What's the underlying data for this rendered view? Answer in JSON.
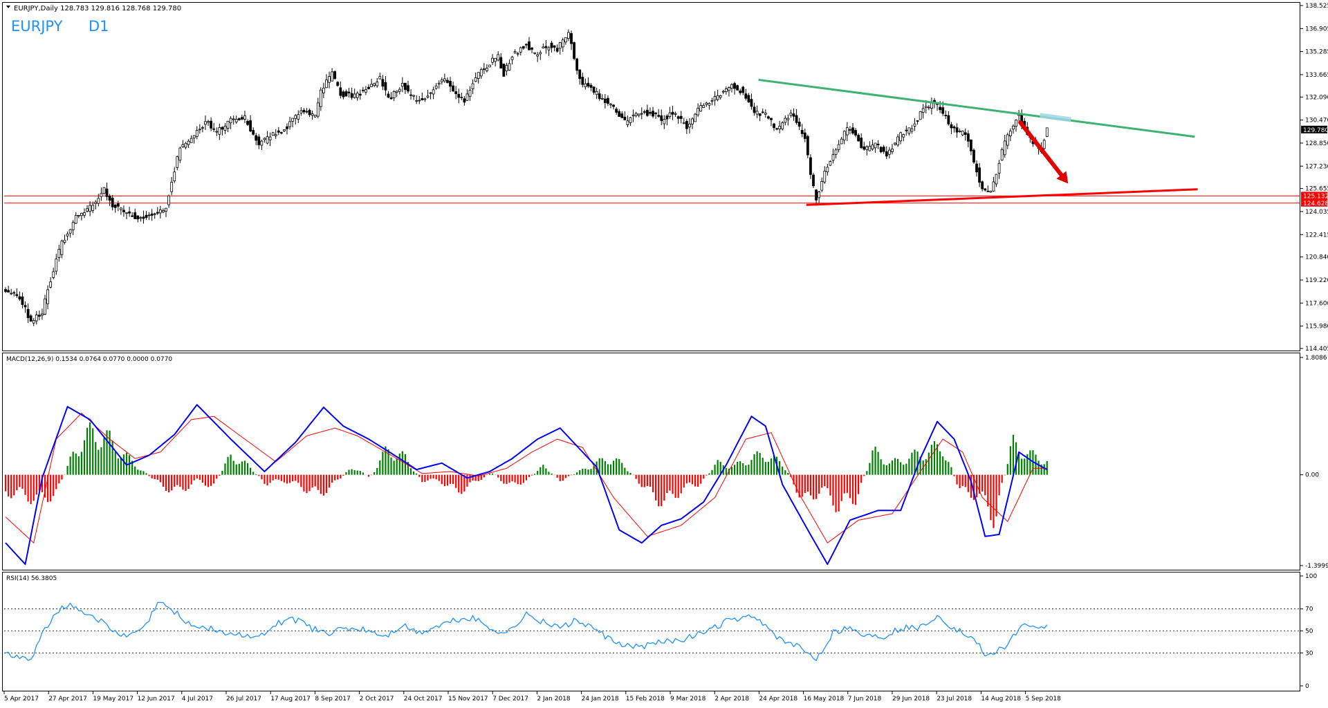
{
  "header": {
    "symbol_info": "EURJPY,Daily  128.783 129.816 128.768 129.780",
    "big_label_symbol": "EURJPY",
    "big_label_tf": "D1"
  },
  "colors": {
    "bull": "#008000",
    "bear": "#ff0000",
    "macd_line": "#0000ff",
    "signal_line": "#ff0000",
    "rsi_line": "#1e90ff",
    "resistance_line": "#3cb371",
    "support_line": "#ff0000",
    "arrow": "#e00000",
    "label_blue": "#1e90ff"
  },
  "chart_data": [
    {
      "type": "candlestick",
      "title": "EURJPY,Daily  128.783 129.816 128.768 129.780",
      "ylim": [
        114.405,
        138.525
      ],
      "y_ticks": [
        "138.525",
        "136.905",
        "135.285",
        "133.665",
        "132.090",
        "130.470",
        "128.850",
        "127.230",
        "125.655",
        "124.035",
        "122.415",
        "120.840",
        "119.220",
        "117.600",
        "115.980",
        "114.405"
      ],
      "price_labels": [
        {
          "value": 129.78,
          "text": "129.780",
          "style": "current"
        },
        {
          "value": 125.132,
          "text": "125.132",
          "style": "red"
        },
        {
          "value": 124.628,
          "text": "124.628",
          "style": "red"
        }
      ],
      "x_labels": [
        "5 Apr 2017",
        "27 Apr 2017",
        "19 May 2017",
        "12 Jun 2017",
        "4 Jul 2017",
        "26 Jul 2017",
        "17 Aug 2017",
        "8 Sep 2017",
        "2 Oct 2017",
        "24 Oct 2017",
        "15 Nov 2017",
        "7 Dec 2017",
        "2 Jan 2018",
        "24 Jan 2018",
        "15 Feb 2018",
        "9 Mar 2018",
        "2 Apr 2018",
        "24 Apr 2018",
        "16 May 2018",
        "7 Jun 2018",
        "29 Jun 2018",
        "23 Jul 2018",
        "14 Aug 2018",
        "5 Sep 2018"
      ],
      "close_path": [
        [
          0,
          118.6
        ],
        [
          5,
          118.0
        ],
        [
          9,
          116.3
        ],
        [
          13,
          117.0
        ],
        [
          17,
          120.0
        ],
        [
          20,
          121.8
        ],
        [
          25,
          123.6
        ],
        [
          30,
          124.3
        ],
        [
          35,
          125.6
        ],
        [
          38,
          124.5
        ],
        [
          42,
          124.0
        ],
        [
          47,
          123.6
        ],
        [
          52,
          123.8
        ],
        [
          57,
          124.4
        ],
        [
          59,
          126.2
        ],
        [
          62,
          128.5
        ],
        [
          67,
          129.3
        ],
        [
          71,
          130.4
        ],
        [
          75,
          129.6
        ],
        [
          80,
          130.4
        ],
        [
          85,
          130.6
        ],
        [
          90,
          128.8
        ],
        [
          95,
          129.4
        ],
        [
          100,
          129.9
        ],
        [
          105,
          131.2
        ],
        [
          110,
          130.7
        ],
        [
          112,
          132.5
        ],
        [
          116,
          133.7
        ],
        [
          119,
          132.3
        ],
        [
          124,
          132.1
        ],
        [
          129,
          132.8
        ],
        [
          133,
          133.4
        ],
        [
          136,
          131.9
        ],
        [
          141,
          132.9
        ],
        [
          146,
          131.8
        ],
        [
          151,
          132.4
        ],
        [
          156,
          133.4
        ],
        [
          160,
          132.4
        ],
        [
          163,
          131.9
        ],
        [
          167,
          133.5
        ],
        [
          172,
          134.5
        ],
        [
          175,
          134.9
        ],
        [
          177,
          133.7
        ],
        [
          180,
          135.0
        ],
        [
          185,
          135.8
        ],
        [
          188,
          135.1
        ],
        [
          193,
          135.7
        ],
        [
          196,
          135.4
        ],
        [
          200,
          136.7
        ],
        [
          202,
          134.7
        ],
        [
          205,
          133.0
        ],
        [
          210,
          132.3
        ],
        [
          215,
          131.6
        ],
        [
          220,
          130.3
        ],
        [
          225,
          131.0
        ],
        [
          230,
          130.9
        ],
        [
          233,
          130.4
        ],
        [
          237,
          131.0
        ],
        [
          242,
          130.0
        ],
        [
          247,
          131.4
        ],
        [
          252,
          132.0
        ],
        [
          257,
          132.9
        ],
        [
          262,
          132.5
        ],
        [
          266,
          131.0
        ],
        [
          270,
          130.8
        ],
        [
          274,
          129.8
        ],
        [
          279,
          131.0
        ],
        [
          284,
          129.3
        ],
        [
          286,
          126.5
        ],
        [
          288,
          124.8
        ],
        [
          291,
          126.8
        ],
        [
          295,
          128.3
        ],
        [
          299,
          130.0
        ],
        [
          302,
          129.4
        ],
        [
          305,
          128.3
        ],
        [
          309,
          128.7
        ],
        [
          313,
          128.0
        ],
        [
          318,
          129.4
        ],
        [
          322,
          130.0
        ],
        [
          326,
          131.2
        ],
        [
          330,
          131.8
        ],
        [
          334,
          130.6
        ],
        [
          337,
          129.8
        ],
        [
          341,
          129.5
        ],
        [
          344,
          127.6
        ],
        [
          347,
          125.6
        ],
        [
          350,
          125.3
        ],
        [
          353,
          127.6
        ],
        [
          356,
          129.4
        ],
        [
          360,
          131.0
        ],
        [
          362,
          129.8
        ],
        [
          365,
          128.9
        ],
        [
          368,
          128.4
        ],
        [
          370,
          129.8
        ]
      ],
      "trendlines": [
        {
          "name": "resistance",
          "from": [
            268,
            133.3
          ],
          "to": [
            423,
            129.3
          ]
        },
        {
          "name": "support",
          "from": [
            285,
            124.5
          ],
          "to": [
            424,
            125.6
          ]
        },
        {
          "name": "retest-zone",
          "from": [
            368,
            130.8
          ],
          "to": [
            379,
            130.5
          ]
        }
      ],
      "arrow": {
        "from": [
          361,
          130.3
        ],
        "to": [
          378,
          126.0
        ]
      },
      "horizontal_levels": [
        125.132,
        124.628
      ]
    },
    {
      "type": "macd",
      "title": "MACD(12,26,9) 0.1534 0.0764 0.0770 0.0000 0.0770",
      "params": [
        12,
        26,
        9
      ],
      "ylim": [
        -1.3999,
        1.8086
      ],
      "y_ticks": [
        "1.8086",
        "0.00",
        "-1.3999"
      ],
      "macd_path": [
        [
          0,
          -1.05
        ],
        [
          7,
          -1.38
        ],
        [
          13,
          -0.05
        ],
        [
          22,
          1.05
        ],
        [
          30,
          0.85
        ],
        [
          43,
          0.15
        ],
        [
          51,
          0.3
        ],
        [
          60,
          0.62
        ],
        [
          68,
          1.08
        ],
        [
          80,
          0.55
        ],
        [
          92,
          0.05
        ],
        [
          103,
          0.5
        ],
        [
          113,
          1.04
        ],
        [
          120,
          0.75
        ],
        [
          129,
          0.55
        ],
        [
          140,
          0.25
        ],
        [
          146,
          0.08
        ],
        [
          155,
          0.18
        ],
        [
          164,
          -0.05
        ],
        [
          172,
          0.05
        ],
        [
          180,
          0.25
        ],
        [
          189,
          0.55
        ],
        [
          197,
          0.72
        ],
        [
          205,
          0.35
        ],
        [
          210,
          0.12
        ],
        [
          218,
          -0.85
        ],
        [
          226,
          -1.05
        ],
        [
          233,
          -0.78
        ],
        [
          240,
          -0.68
        ],
        [
          248,
          -0.42
        ],
        [
          256,
          0.15
        ],
        [
          265,
          0.9
        ],
        [
          270,
          0.75
        ],
        [
          276,
          -0.15
        ],
        [
          285,
          -0.85
        ],
        [
          292,
          -1.38
        ],
        [
          300,
          -0.7
        ],
        [
          310,
          -0.55
        ],
        [
          318,
          -0.55
        ],
        [
          325,
          0.25
        ],
        [
          331,
          0.82
        ],
        [
          337,
          0.55
        ],
        [
          343,
          -0.1
        ],
        [
          348,
          -0.95
        ],
        [
          353,
          -0.92
        ],
        [
          360,
          0.35
        ],
        [
          365,
          0.2
        ],
        [
          370,
          0.08
        ]
      ],
      "signal_path": [
        [
          0,
          -0.65
        ],
        [
          10,
          -1.05
        ],
        [
          18,
          0.55
        ],
        [
          27,
          0.95
        ],
        [
          37,
          0.55
        ],
        [
          46,
          0.25
        ],
        [
          55,
          0.35
        ],
        [
          66,
          0.85
        ],
        [
          74,
          0.9
        ],
        [
          85,
          0.55
        ],
        [
          96,
          0.2
        ],
        [
          107,
          0.6
        ],
        [
          117,
          0.72
        ],
        [
          125,
          0.6
        ],
        [
          135,
          0.35
        ],
        [
          148,
          0.02
        ],
        [
          158,
          0.05
        ],
        [
          168,
          -0.02
        ],
        [
          178,
          0.1
        ],
        [
          187,
          0.35
        ],
        [
          196,
          0.55
        ],
        [
          205,
          0.42
        ],
        [
          216,
          -0.35
        ],
        [
          228,
          -0.95
        ],
        [
          240,
          -0.78
        ],
        [
          252,
          -0.35
        ],
        [
          263,
          0.55
        ],
        [
          272,
          0.65
        ],
        [
          282,
          -0.3
        ],
        [
          292,
          -1.05
        ],
        [
          303,
          -0.7
        ],
        [
          315,
          -0.6
        ],
        [
          325,
          0.05
        ],
        [
          333,
          0.55
        ],
        [
          340,
          0.35
        ],
        [
          347,
          -0.35
        ],
        [
          356,
          -0.72
        ],
        [
          365,
          0.1
        ],
        [
          370,
          0.1
        ]
      ],
      "histogram": {
        "values": [
          -0.3,
          -0.35,
          -0.45,
          -0.3,
          0.45,
          0.75,
          0.6,
          0.3,
          0.05,
          -0.2,
          -0.3,
          -0.1,
          -0.2,
          0.35,
          0.15,
          -0.15,
          -0.1,
          -0.2,
          -0.35,
          -0.15,
          0.15,
          -0.05,
          0.45,
          0.3,
          -0.1,
          -0.1,
          -0.3,
          -0.15,
          0.05,
          -0.2,
          -0.1,
          0.15,
          -0.1,
          0.05,
          0.2,
          0.3,
          0.05,
          -0.3,
          -0.5,
          -0.25,
          -0.15,
          0.2,
          0.15,
          0.3,
          0.35,
          0.1,
          -0.5,
          -0.25,
          -0.55,
          -0.4,
          0.4,
          0.2,
          0.3,
          0.4,
          0.5,
          -0.3,
          -0.35,
          -0.75,
          0.55,
          0.35,
          0.25
        ]
      }
    },
    {
      "type": "line",
      "title": "RSI(14) 56.3805",
      "ylim": [
        0,
        100
      ],
      "y_ticks": [
        "100",
        "70",
        "50",
        "30",
        "0"
      ],
      "levels": [
        70,
        50,
        30
      ],
      "rsi_path": [
        [
          0,
          31
        ],
        [
          5,
          25
        ],
        [
          9,
          22
        ],
        [
          13,
          48
        ],
        [
          18,
          68
        ],
        [
          22,
          74
        ],
        [
          28,
          68
        ],
        [
          34,
          58
        ],
        [
          39,
          48
        ],
        [
          44,
          45
        ],
        [
          50,
          55
        ],
        [
          54,
          76
        ],
        [
          60,
          68
        ],
        [
          66,
          55
        ],
        [
          72,
          53
        ],
        [
          78,
          48
        ],
        [
          84,
          46
        ],
        [
          92,
          45
        ],
        [
          97,
          58
        ],
        [
          103,
          60
        ],
        [
          109,
          52
        ],
        [
          115,
          48
        ],
        [
          121,
          52
        ],
        [
          128,
          51
        ],
        [
          135,
          45
        ],
        [
          141,
          55
        ],
        [
          147,
          48
        ],
        [
          154,
          55
        ],
        [
          160,
          60
        ],
        [
          166,
          62
        ],
        [
          172,
          53
        ],
        [
          178,
          48
        ],
        [
          185,
          65
        ],
        [
          191,
          58
        ],
        [
          197,
          53
        ],
        [
          203,
          60
        ],
        [
          210,
          50
        ],
        [
          216,
          40
        ],
        [
          222,
          35
        ],
        [
          228,
          37
        ],
        [
          235,
          41
        ],
        [
          242,
          43
        ],
        [
          250,
          50
        ],
        [
          257,
          60
        ],
        [
          264,
          62
        ],
        [
          269,
          58
        ],
        [
          275,
          42
        ],
        [
          282,
          35
        ],
        [
          288,
          25
        ],
        [
          294,
          48
        ],
        [
          299,
          54
        ],
        [
          305,
          46
        ],
        [
          312,
          45
        ],
        [
          318,
          52
        ],
        [
          325,
          54
        ],
        [
          331,
          64
        ],
        [
          337,
          52
        ],
        [
          343,
          44
        ],
        [
          349,
          27
        ],
        [
          355,
          35
        ],
        [
          361,
          55
        ],
        [
          367,
          50
        ],
        [
          370,
          56
        ]
      ]
    }
  ]
}
